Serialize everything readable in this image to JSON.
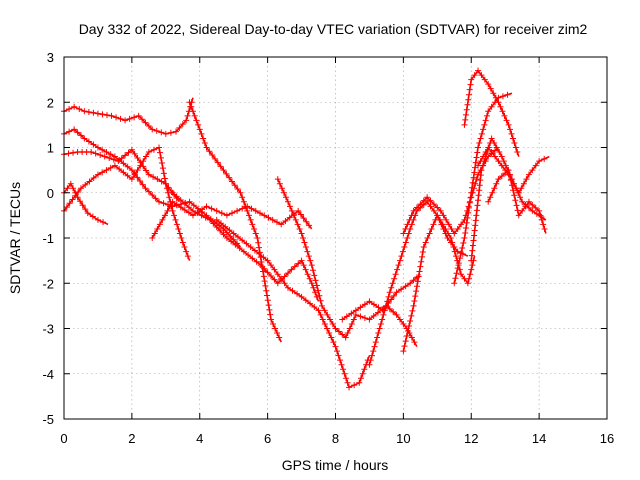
{
  "chart_data": {
    "type": "scatter",
    "title": "Day 332 of 2022, Sidereal Day-to-day VTEC variation (SDTVAR) for receiver zim2",
    "xlabel": "GPS time / hours",
    "ylabel": "SDTVAR / TECUs",
    "xlim": [
      0,
      16
    ],
    "ylim": [
      -5,
      3
    ],
    "xticks": [
      "0",
      "2",
      "4",
      "6",
      "8",
      "10",
      "12",
      "14",
      "16"
    ],
    "yticks": [
      "-5",
      "-4",
      "-3",
      "-2",
      "-1",
      "0",
      "1",
      "2",
      "3"
    ],
    "grid": true,
    "legend": "none",
    "marker": "plus",
    "color": "#ff0000",
    "series": [
      {
        "x": [
          0,
          0.3,
          0.6,
          1,
          1.4,
          1.8,
          2.2,
          2.6,
          3,
          3.3,
          3.6,
          3.8
        ],
        "y": [
          1.8,
          1.9,
          1.8,
          1.75,
          1.7,
          1.6,
          1.7,
          1.4,
          1.3,
          1.35,
          1.6,
          2.1
        ]
      },
      {
        "x": [
          0,
          0.3,
          0.6,
          1,
          1.5,
          2,
          2.4,
          2.8,
          3.2,
          3.7,
          4.2,
          4.7,
          5.2
        ],
        "y": [
          1.3,
          1.4,
          1.2,
          1.0,
          0.8,
          0.5,
          0.1,
          -0.2,
          -0.3,
          -0.2,
          -0.5,
          -0.8,
          -1.2
        ]
      },
      {
        "x": [
          0,
          0.4,
          0.8,
          1.2,
          1.6,
          2,
          2.5,
          3,
          3.4
        ],
        "y": [
          0.85,
          0.9,
          0.9,
          0.8,
          0.7,
          0.95,
          0.4,
          0.2,
          -0.2
        ]
      },
      {
        "x": [
          0,
          0.2,
          0.4,
          0.7,
          1,
          1.3
        ],
        "y": [
          0,
          0.2,
          -0.1,
          -0.45,
          -0.6,
          -0.7
        ]
      },
      {
        "x": [
          0,
          0.5,
          1,
          1.5,
          2,
          2.5,
          2.8,
          3.0,
          3.2,
          3.5,
          3.7
        ],
        "y": [
          -0.4,
          0.1,
          0.4,
          0.6,
          0.3,
          0.9,
          1.0,
          0.2,
          -0.4,
          -1.1,
          -1.5
        ]
      },
      {
        "x": [
          3.7,
          4.2,
          4.7,
          5.2,
          5.7,
          6.1,
          6.4
        ],
        "y": [
          2.0,
          1.0,
          0.5,
          0,
          -1.0,
          -2.8,
          -3.3
        ]
      },
      {
        "x": [
          2.6,
          3.2,
          3.8,
          4.2,
          4.8,
          5.4,
          5.9,
          6.4,
          6.9,
          7.3
        ],
        "y": [
          -1.0,
          -0.2,
          -0.5,
          -0.3,
          -0.5,
          -0.3,
          -0.5,
          -0.7,
          -0.4,
          -0.8
        ]
      },
      {
        "x": [
          3.2,
          3.8,
          4.3,
          4.8,
          5.3,
          5.8,
          6.3,
          6.7,
          7.0,
          7.3,
          7.5
        ],
        "y": [
          0.0,
          -0.4,
          -0.6,
          -1.0,
          -1.3,
          -1.6,
          -2.0,
          -1.7,
          -1.5,
          -2.0,
          -2.4
        ]
      },
      {
        "x": [
          4.5,
          5.0,
          5.5,
          6.0,
          6.3,
          6.6,
          7.0,
          7.5,
          8.0,
          8.4,
          8.7,
          9.0
        ],
        "y": [
          -0.6,
          -0.9,
          -1.2,
          -1.5,
          -1.8,
          -2.1,
          -2.3,
          -2.6,
          -3.4,
          -4.3,
          -4.2,
          -3.6
        ]
      },
      {
        "x": [
          6.3,
          6.6,
          7.0,
          7.3,
          7.6,
          8.0,
          8.3,
          8.6,
          9.0,
          9.5,
          9.8,
          10.1,
          10.4
        ],
        "y": [
          0.3,
          -0.2,
          -0.9,
          -1.6,
          -2.5,
          -3.0,
          -3.2,
          -2.7,
          -2.8,
          -2.5,
          -2.7,
          -3.0,
          -3.4
        ]
      },
      {
        "x": [
          8.2,
          8.6,
          9.0,
          9.4,
          9.8,
          10.2,
          10.5
        ],
        "y": [
          -2.8,
          -2.6,
          -2.4,
          -2.6,
          -2.2,
          -2.0,
          -1.8
        ]
      },
      {
        "x": [
          9.0,
          9.3,
          9.6,
          9.9,
          10.2,
          10.4,
          10.7,
          11.0,
          11.3,
          11.6,
          11.9
        ],
        "y": [
          -3.8,
          -3.0,
          -2.2,
          -1.5,
          -0.8,
          -0.4,
          -0.2,
          -0.5,
          -1.0,
          -1.3,
          -1.4
        ]
      },
      {
        "x": [
          10.0,
          10.3,
          10.6,
          11.0,
          11.4,
          11.7,
          11.9,
          12.1
        ],
        "y": [
          -3.5,
          -2.5,
          -1.2,
          -0.5,
          -1.0,
          -1.8,
          -2.0,
          -1.4
        ]
      },
      {
        "x": [
          10.0,
          10.3,
          10.7,
          11.1,
          11.5,
          11.8,
          12.0,
          12.2,
          12.5,
          12.8
        ],
        "y": [
          -0.9,
          -0.4,
          -0.1,
          -0.4,
          -0.9,
          -0.6,
          -0.1,
          0.4,
          0.8,
          1.0
        ]
      },
      {
        "x": [
          11.5,
          11.8,
          12.0,
          12.2,
          12.5,
          12.8,
          13.2
        ],
        "y": [
          -2.0,
          -1.0,
          0.0,
          1.0,
          1.8,
          2.1,
          2.2
        ]
      },
      {
        "x": [
          11.8,
          12.0,
          12.2,
          12.5,
          12.8,
          13.1,
          13.4
        ],
        "y": [
          1.5,
          2.5,
          2.7,
          2.4,
          2.0,
          1.5,
          0.8
        ]
      },
      {
        "x": [
          12.0,
          12.3,
          12.6,
          12.9,
          13.2,
          13.5,
          13.8,
          14.2
        ],
        "y": [
          -1.5,
          0.5,
          1.2,
          0.8,
          0.3,
          -0.2,
          -0.4,
          -0.6
        ]
      },
      {
        "x": [
          12.2,
          12.5,
          12.8,
          13.1,
          13.4,
          13.7,
          14.0,
          14.3
        ],
        "y": [
          0.6,
          1.0,
          0.7,
          0.4,
          0.0,
          0.4,
          0.7,
          0.8
        ]
      },
      {
        "x": [
          12.5,
          12.8,
          13.1,
          13.4,
          13.7,
          14.0,
          14.2
        ],
        "y": [
          -0.2,
          0.3,
          0.5,
          -0.5,
          -0.2,
          -0.4,
          -0.9
        ]
      }
    ]
  }
}
